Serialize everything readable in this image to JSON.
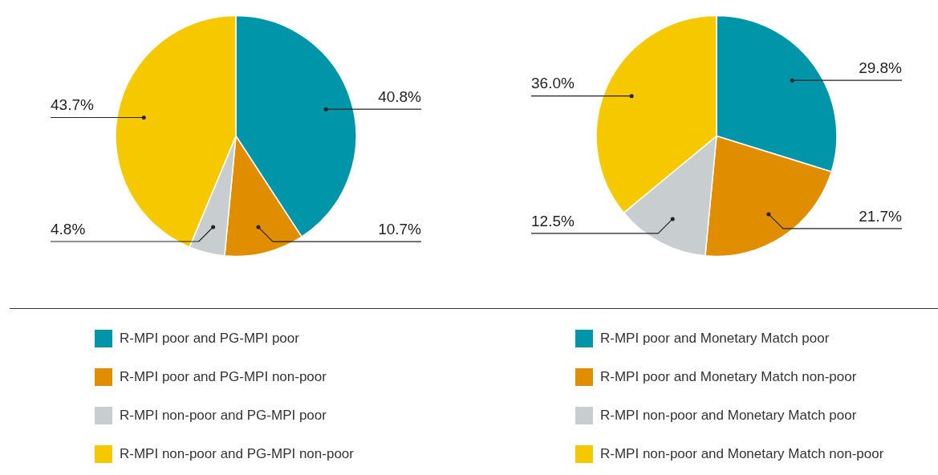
{
  "chart_data": [
    {
      "type": "pie",
      "categories": [
        "R-MPI poor and PG-MPI poor",
        "R-MPI poor and PG-MPI non-poor",
        "R-MPI non-poor and PG-MPI poor",
        "R-MPI non-poor and PG-MPI non-poor"
      ],
      "values": [
        40.8,
        10.7,
        4.8,
        43.7
      ],
      "value_labels": [
        "40.8%",
        "10.7%",
        "4.8%",
        "43.7%"
      ],
      "colors": [
        "#0095a8",
        "#e08e00",
        "#c8cdd0",
        "#f5c800"
      ],
      "legend": "bottom"
    },
    {
      "type": "pie",
      "categories": [
        "R-MPI poor and Monetary Match poor",
        "R-MPI poor and Monetary Match non-poor",
        "R-MPI non-poor and Monetary Match poor",
        "R-MPI non-poor and Monetary Match non-poor"
      ],
      "values": [
        29.8,
        21.7,
        12.5,
        36.0
      ],
      "value_labels": [
        "29.8%",
        "21.7%",
        "12.5%",
        "36.0%"
      ],
      "colors": [
        "#0095a8",
        "#e08e00",
        "#c8cdd0",
        "#f5c800"
      ],
      "legend": "bottom"
    }
  ]
}
